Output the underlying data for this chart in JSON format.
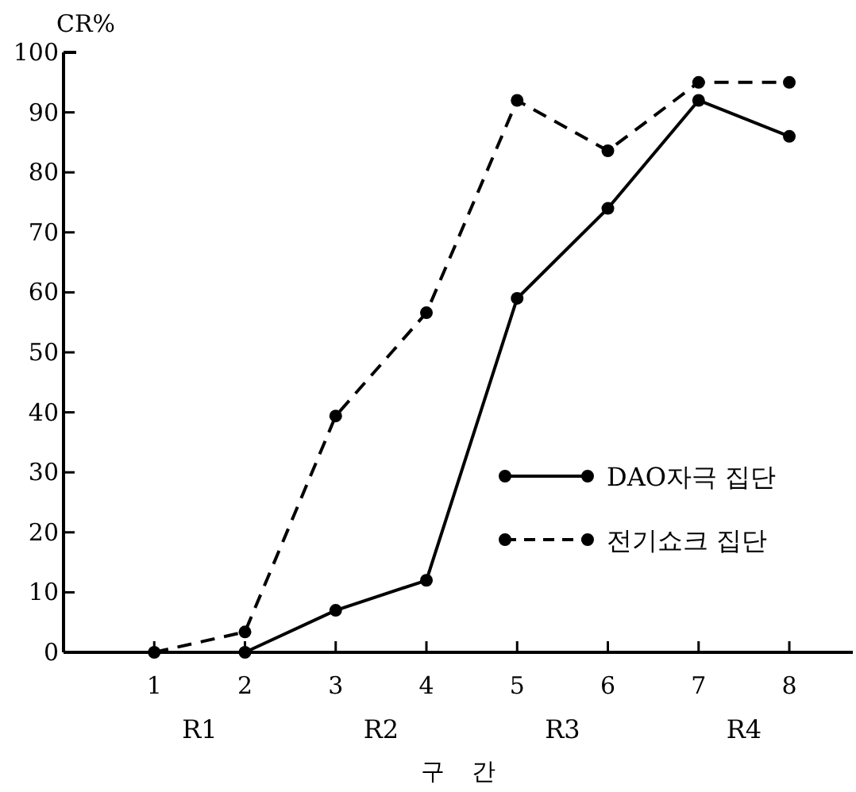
{
  "chart_data": {
    "type": "line",
    "xlabel": "구 간",
    "ylabel": "CR%",
    "xlim": [
      0,
      8.7
    ],
    "ylim": [
      0,
      100
    ],
    "xticks": [
      1,
      2,
      3,
      4,
      5,
      6,
      7,
      8
    ],
    "yticks": [
      0,
      10,
      20,
      30,
      40,
      50,
      60,
      70,
      80,
      90,
      100
    ],
    "marker": "circle",
    "grid": false,
    "legend": "bottom right",
    "series": [
      {
        "name": "DAO자극 집단",
        "color": "#000000",
        "line_style": "solid",
        "x": [
          2,
          3,
          4,
          5,
          6,
          7,
          8
        ],
        "values": [
          0,
          7,
          12,
          59,
          74,
          92,
          86
        ]
      },
      {
        "name": "전기쇼크 집단",
        "color": "#000000",
        "line_style": "dashed",
        "x": [
          1,
          2,
          3,
          4,
          5,
          6,
          7,
          8
        ],
        "values": [
          0,
          3.4,
          39.4,
          56.6,
          92,
          83.6,
          95,
          95
        ]
      }
    ],
    "annotations": [
      "R1",
      "R2",
      "R3",
      "R4"
    ]
  }
}
